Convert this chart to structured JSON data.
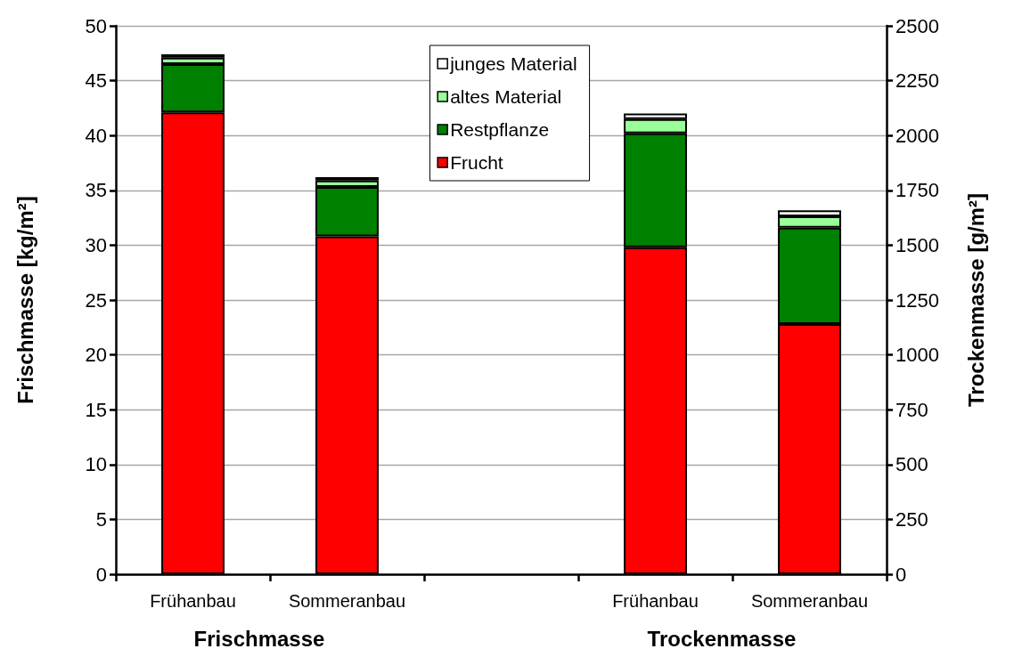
{
  "chart_data": {
    "type": "bar",
    "stacked": true,
    "categories": [
      "Frühanbau",
      "Sommeranbau",
      null,
      "Frühanbau",
      "Sommeranbau"
    ],
    "series": [
      {
        "name": "Frucht",
        "color": "#ff0000",
        "values": [
          42.1,
          30.8,
          null,
          null,
          null
        ]
      },
      {
        "name": "Restpflanze",
        "color": "#008000",
        "values": [
          4.4,
          4.5,
          null,
          null,
          null
        ]
      },
      {
        "name": "altes Material",
        "color": "#99ff99",
        "values": [
          0.6,
          0.6,
          null,
          null,
          null
        ]
      },
      {
        "name": "junges Material",
        "color": "#ffffff",
        "values": [
          0.3,
          0.3,
          null,
          null,
          null
        ]
      },
      {
        "color": "#ff0000",
        "axis": "y2",
        "values": [
          null,
          null,
          null,
          1490,
          1140
        ]
      },
      {
        "color": "#008000",
        "axis": "y2",
        "values": [
          null,
          null,
          null,
          520,
          440
        ]
      },
      {
        "color": "#99ff99",
        "axis": "y2",
        "values": [
          null,
          null,
          null,
          65,
          52
        ]
      },
      {
        "color": "#ffffff",
        "axis": "y2",
        "values": [
          null,
          null,
          null,
          25,
          27
        ]
      }
    ],
    "ylabel": "Frischmasse [kg/m²]",
    "y2label": "Trockenmasse [g/m²]",
    "ylim": [
      0,
      50
    ],
    "yticks": [
      0,
      5,
      10,
      15,
      20,
      25,
      30,
      35,
      40,
      45,
      50
    ],
    "y2lim": [
      0,
      2500
    ],
    "y2ticks": [
      0,
      250,
      500,
      750,
      1000,
      1250,
      1500,
      1750,
      2000,
      2250,
      2500
    ],
    "grid": "y",
    "legend": "top",
    "annotations": [
      "Frischmasse",
      "Trockenmasse"
    ]
  }
}
